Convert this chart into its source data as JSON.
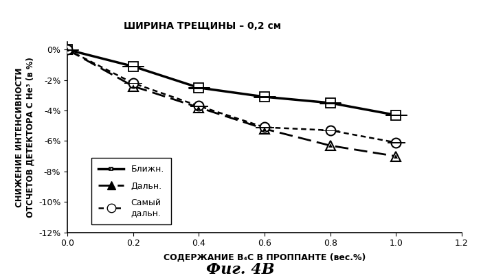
{
  "title": "ШИРИНА ТРЕЩИНЫ – 0,2 см",
  "xlabel": "СОДЕРЖАНИЕ B₄C В ПРОППАНТЕ (вес.%)",
  "ylabel": "СНИЖЕНИЕ ИНТЕНСИВНОСТИ\nОТСЧЕТОВ ДЕТЕКТОРА С He³ (в %)",
  "fig_caption": "Фиг. 4В",
  "x": [
    0.0,
    0.2,
    0.4,
    0.6,
    0.8,
    1.0
  ],
  "near": [
    0.0,
    -1.1,
    -2.5,
    -3.1,
    -3.5,
    -4.3
  ],
  "far": [
    0.0,
    -2.4,
    -3.8,
    -5.2,
    -6.3,
    -7.0
  ],
  "farthest": [
    0.0,
    -2.2,
    -3.7,
    -5.1,
    -5.3,
    -6.1
  ],
  "xlim": [
    0.0,
    1.2
  ],
  "ylim": [
    -12,
    0.5
  ],
  "yticks": [
    0,
    -2,
    -4,
    -6,
    -8,
    -10,
    -12
  ],
  "xticks": [
    0.0,
    0.2,
    0.4,
    0.6,
    0.8,
    1.0,
    1.2
  ],
  "xtick_labels": [
    "0.0",
    "0.2",
    "0.4",
    "0.6",
    "0.8",
    "1.0",
    "1.2"
  ],
  "legend_near": "Ближн.",
  "legend_far": "Дальн.",
  "legend_farthest": "Самый\nдальн.",
  "background": "#ffffff"
}
